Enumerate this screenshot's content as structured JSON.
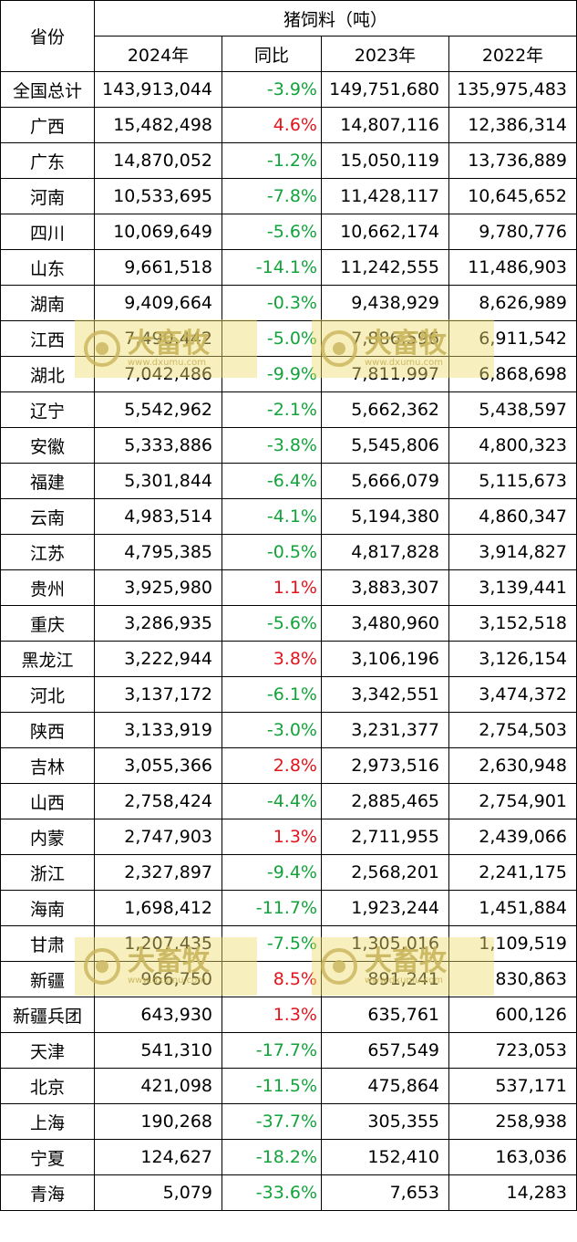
{
  "header": {
    "province_label": "省份",
    "group_label": "猪饲料（吨）",
    "col_2024": "2024年",
    "col_yoy": "同比",
    "col_2023": "2023年",
    "col_2022": "2022年"
  },
  "rows": [
    {
      "name": "全国总计",
      "y2024": "143,913,044",
      "yoy": "-3.9%",
      "y2023": "149,751,680",
      "y2022": "135,975,483"
    },
    {
      "name": "广西",
      "y2024": "15,482,498",
      "yoy": "4.6%",
      "y2023": "14,807,116",
      "y2022": "12,386,314"
    },
    {
      "name": "广东",
      "y2024": "14,870,052",
      "yoy": "-1.2%",
      "y2023": "15,050,119",
      "y2022": "13,736,889"
    },
    {
      "name": "河南",
      "y2024": "10,533,695",
      "yoy": "-7.8%",
      "y2023": "11,428,117",
      "y2022": "10,645,652"
    },
    {
      "name": "四川",
      "y2024": "10,069,649",
      "yoy": "-5.6%",
      "y2023": "10,662,174",
      "y2022": "9,780,776"
    },
    {
      "name": "山东",
      "y2024": "9,661,518",
      "yoy": "-14.1%",
      "y2023": "11,242,555",
      "y2022": "11,486,903"
    },
    {
      "name": "湖南",
      "y2024": "9,409,664",
      "yoy": "-0.3%",
      "y2023": "9,438,929",
      "y2022": "8,626,989"
    },
    {
      "name": "江西",
      "y2024": "7,490,442",
      "yoy": "-5.0%",
      "y2023": "7,886,596",
      "y2022": "6,911,542"
    },
    {
      "name": "湖北",
      "y2024": "7,042,486",
      "yoy": "-9.9%",
      "y2023": "7,811,997",
      "y2022": "6,868,698"
    },
    {
      "name": "辽宁",
      "y2024": "5,542,962",
      "yoy": "-2.1%",
      "y2023": "5,662,362",
      "y2022": "5,438,597"
    },
    {
      "name": "安徽",
      "y2024": "5,333,886",
      "yoy": "-3.8%",
      "y2023": "5,545,806",
      "y2022": "4,800,323"
    },
    {
      "name": "福建",
      "y2024": "5,301,844",
      "yoy": "-6.4%",
      "y2023": "5,666,079",
      "y2022": "5,115,673"
    },
    {
      "name": "云南",
      "y2024": "4,983,514",
      "yoy": "-4.1%",
      "y2023": "5,194,380",
      "y2022": "4,860,347"
    },
    {
      "name": "江苏",
      "y2024": "4,795,385",
      "yoy": "-0.5%",
      "y2023": "4,817,828",
      "y2022": "3,914,827"
    },
    {
      "name": "贵州",
      "y2024": "3,925,980",
      "yoy": "1.1%",
      "y2023": "3,883,307",
      "y2022": "3,139,441"
    },
    {
      "name": "重庆",
      "y2024": "3,286,935",
      "yoy": "-5.6%",
      "y2023": "3,480,960",
      "y2022": "3,152,518"
    },
    {
      "name": "黑龙江",
      "y2024": "3,222,944",
      "yoy": "3.8%",
      "y2023": "3,106,196",
      "y2022": "3,126,154"
    },
    {
      "name": "河北",
      "y2024": "3,137,172",
      "yoy": "-6.1%",
      "y2023": "3,342,551",
      "y2022": "3,474,372"
    },
    {
      "name": "陕西",
      "y2024": "3,133,919",
      "yoy": "-3.0%",
      "y2023": "3,231,377",
      "y2022": "2,754,503"
    },
    {
      "name": "吉林",
      "y2024": "3,055,366",
      "yoy": "2.8%",
      "y2023": "2,973,516",
      "y2022": "2,630,948"
    },
    {
      "name": "山西",
      "y2024": "2,758,424",
      "yoy": "-4.4%",
      "y2023": "2,885,465",
      "y2022": "2,754,901"
    },
    {
      "name": "内蒙",
      "y2024": "2,747,903",
      "yoy": "1.3%",
      "y2023": "2,711,955",
      "y2022": "2,439,066"
    },
    {
      "name": "浙江",
      "y2024": "2,327,897",
      "yoy": "-9.4%",
      "y2023": "2,568,201",
      "y2022": "2,241,175"
    },
    {
      "name": "海南",
      "y2024": "1,698,412",
      "yoy": "-11.7%",
      "y2023": "1,923,244",
      "y2022": "1,451,884"
    },
    {
      "name": "甘肃",
      "y2024": "1,207,435",
      "yoy": "-7.5%",
      "y2023": "1,305,016",
      "y2022": "1,109,519"
    },
    {
      "name": "新疆",
      "y2024": "966,750",
      "yoy": "8.5%",
      "y2023": "891,241",
      "y2022": "830,863"
    },
    {
      "name": "新疆兵团",
      "y2024": "643,930",
      "yoy": "1.3%",
      "y2023": "635,761",
      "y2022": "600,126"
    },
    {
      "name": "天津",
      "y2024": "541,310",
      "yoy": "-17.7%",
      "y2023": "657,549",
      "y2022": "723,053"
    },
    {
      "name": "北京",
      "y2024": "421,098",
      "yoy": "-11.5%",
      "y2023": "475,864",
      "y2022": "537,171"
    },
    {
      "name": "上海",
      "y2024": "190,268",
      "yoy": "-37.7%",
      "y2023": "305,355",
      "y2022": "258,938"
    },
    {
      "name": "宁夏",
      "y2024": "124,627",
      "yoy": "-18.2%",
      "y2023": "152,410",
      "y2022": "163,036"
    },
    {
      "name": "青海",
      "y2024": "5,079",
      "yoy": "-33.6%",
      "y2023": "7,653",
      "y2022": "14,283"
    }
  ],
  "colors": {
    "negative": "#12a33a",
    "positive": "#e2141c"
  },
  "watermark": {
    "brand": "大畜牧",
    "domain": "www.dxumu.com",
    "icon": "eye-logo-icon"
  }
}
